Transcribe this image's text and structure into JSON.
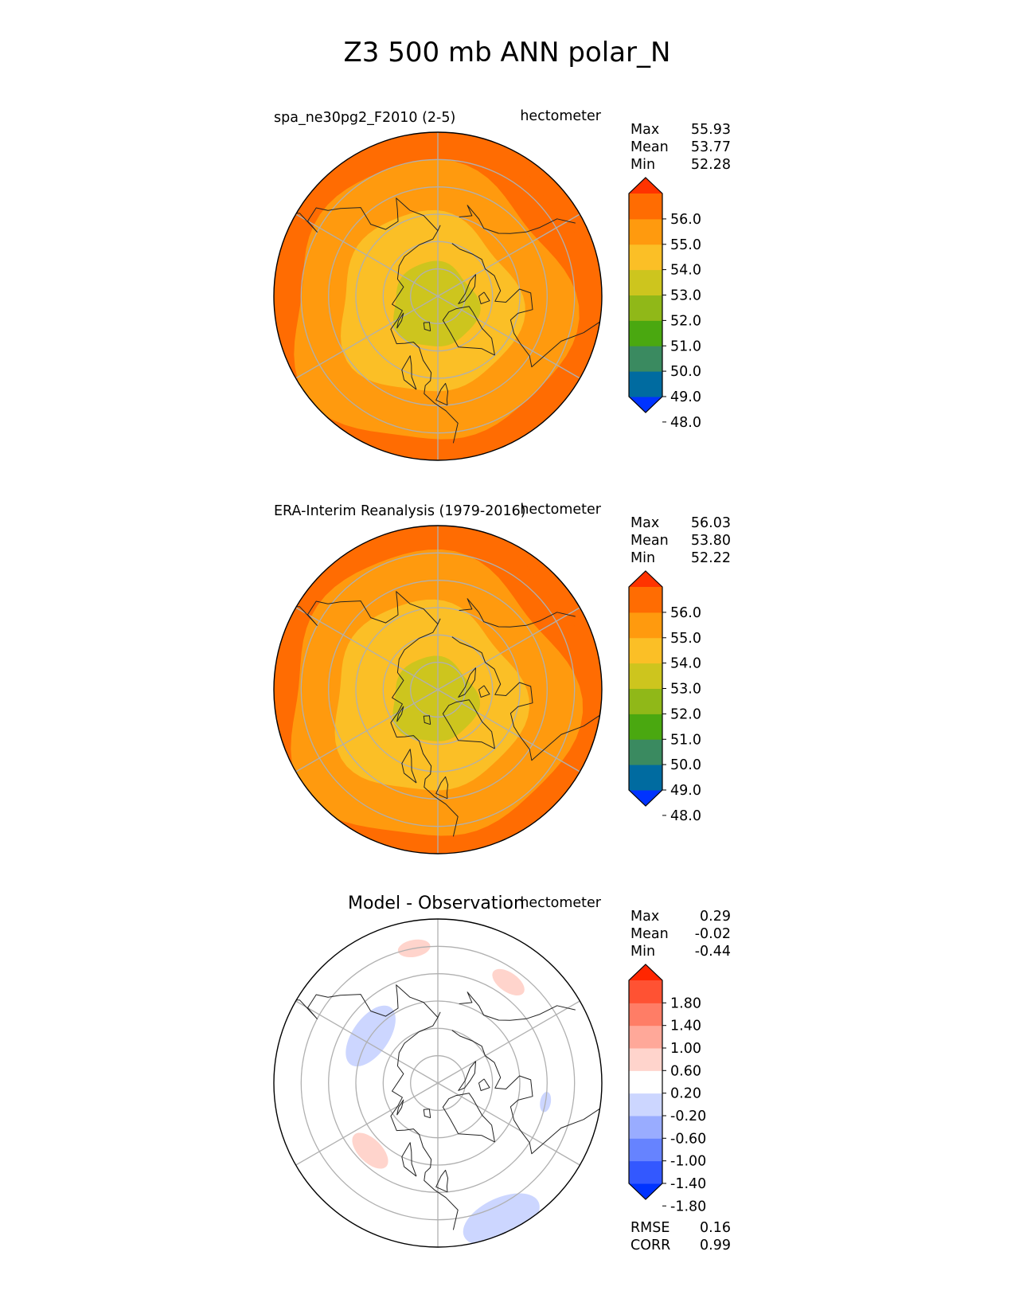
{
  "figure_title": "Z3 500 mb ANN polar_N",
  "chart_data": [
    {
      "type": "polar_contour_map",
      "title": "spa_ne30pg2_F2010 (2-5)",
      "units": "hectometer",
      "stats": [
        {
          "label": "Max",
          "value": "55.93"
        },
        {
          "label": "Mean",
          "value": "53.77"
        },
        {
          "label": "Min",
          "value": "52.28"
        }
      ],
      "colorbar": {
        "ticks": [
          "56.0",
          "55.0",
          "54.0",
          "53.0",
          "52.0",
          "51.0",
          "50.0",
          "49.0",
          "48.0"
        ],
        "colors": [
          "#0033ff",
          "#006ba0",
          "#3a8a60",
          "#4aa810",
          "#90b818",
          "#cdc51e",
          "#fbbf26",
          "#ff9a0e",
          "#ff6c02",
          "#ff3300"
        ]
      },
      "field": {
        "levels": [
          {
            "value": 52.5,
            "color": "#cdc51e",
            "extent": 0.26,
            "shift_angle": 200,
            "shift": 0.06
          },
          {
            "value": 53.5,
            "color": "#fbbf26",
            "extent": 0.55,
            "shift_angle": 230,
            "shift": 0.08
          },
          {
            "value": 54.5,
            "color": "#ff9a0e",
            "extent": 0.85,
            "shift_angle": 225,
            "shift": 0.08
          },
          {
            "value": 55.5,
            "color": "#ff6c02",
            "extent": 1.05,
            "shift_angle": 210,
            "shift": 0.07
          }
        ]
      }
    },
    {
      "type": "polar_contour_map",
      "title": "ERA-Interim Reanalysis (1979-2016)",
      "units": "hectometer",
      "stats": [
        {
          "label": "Max",
          "value": "56.03"
        },
        {
          "label": "Mean",
          "value": "53.80"
        },
        {
          "label": "Min",
          "value": "52.22"
        }
      ],
      "colorbar": {
        "ticks": [
          "56.0",
          "55.0",
          "54.0",
          "53.0",
          "52.0",
          "51.0",
          "50.0",
          "49.0",
          "48.0"
        ],
        "colors": [
          "#0033ff",
          "#006ba0",
          "#3a8a60",
          "#4aa810",
          "#90b818",
          "#cdc51e",
          "#fbbf26",
          "#ff9a0e",
          "#ff6c02",
          "#ff3300"
        ]
      },
      "field": {
        "levels": [
          {
            "value": 52.5,
            "color": "#cdc51e",
            "extent": 0.26,
            "shift_angle": 200,
            "shift": 0.07
          },
          {
            "value": 53.5,
            "color": "#fbbf26",
            "extent": 0.58,
            "shift_angle": 230,
            "shift": 0.09
          },
          {
            "value": 54.5,
            "color": "#ff9a0e",
            "extent": 0.87,
            "shift_angle": 225,
            "shift": 0.08
          },
          {
            "value": 55.5,
            "color": "#ff6c02",
            "extent": 1.05,
            "shift_angle": 210,
            "shift": 0.07
          }
        ]
      }
    },
    {
      "type": "polar_contour_map",
      "title": "Model - Observation",
      "units": "hectometer",
      "stats": [
        {
          "label": "Max",
          "value": "0.29"
        },
        {
          "label": "Mean",
          "value": "-0.02"
        },
        {
          "label": "Min",
          "value": "-0.44"
        }
      ],
      "metrics": [
        {
          "label": "RMSE",
          "value": "0.16"
        },
        {
          "label": "CORR",
          "value": "0.99"
        }
      ],
      "colorbar": {
        "ticks": [
          "1.80",
          "1.40",
          "1.00",
          "0.60",
          "0.20",
          "-0.20",
          "-0.60",
          "-1.00",
          "-1.40",
          "-1.80"
        ],
        "colors": [
          "#0033ff",
          "#3358ff",
          "#6683ff",
          "#99acff",
          "#ccd6ff",
          "#ffffff",
          "#ffd4cc",
          "#ffa899",
          "#ff7d66",
          "#ff5233",
          "#ff2600"
        ]
      },
      "anomalies": [
        {
          "color": "#ccd6ff",
          "lat": 60,
          "lon": 305,
          "size": 0.17
        },
        {
          "color": "#ccd6ff",
          "lat": 50,
          "lon": 100,
          "size": 0.05
        },
        {
          "color": "#ccd6ff",
          "lat": 35,
          "lon": 155,
          "size": 0.2
        },
        {
          "color": "#ffd4cc",
          "lat": 55,
          "lon": 225,
          "size": 0.11
        },
        {
          "color": "#ffd4cc",
          "lat": 45,
          "lon": 35,
          "size": 0.09
        },
        {
          "color": "#ffd4cc",
          "lat": 40,
          "lon": 350,
          "size": 0.08
        }
      ]
    }
  ]
}
